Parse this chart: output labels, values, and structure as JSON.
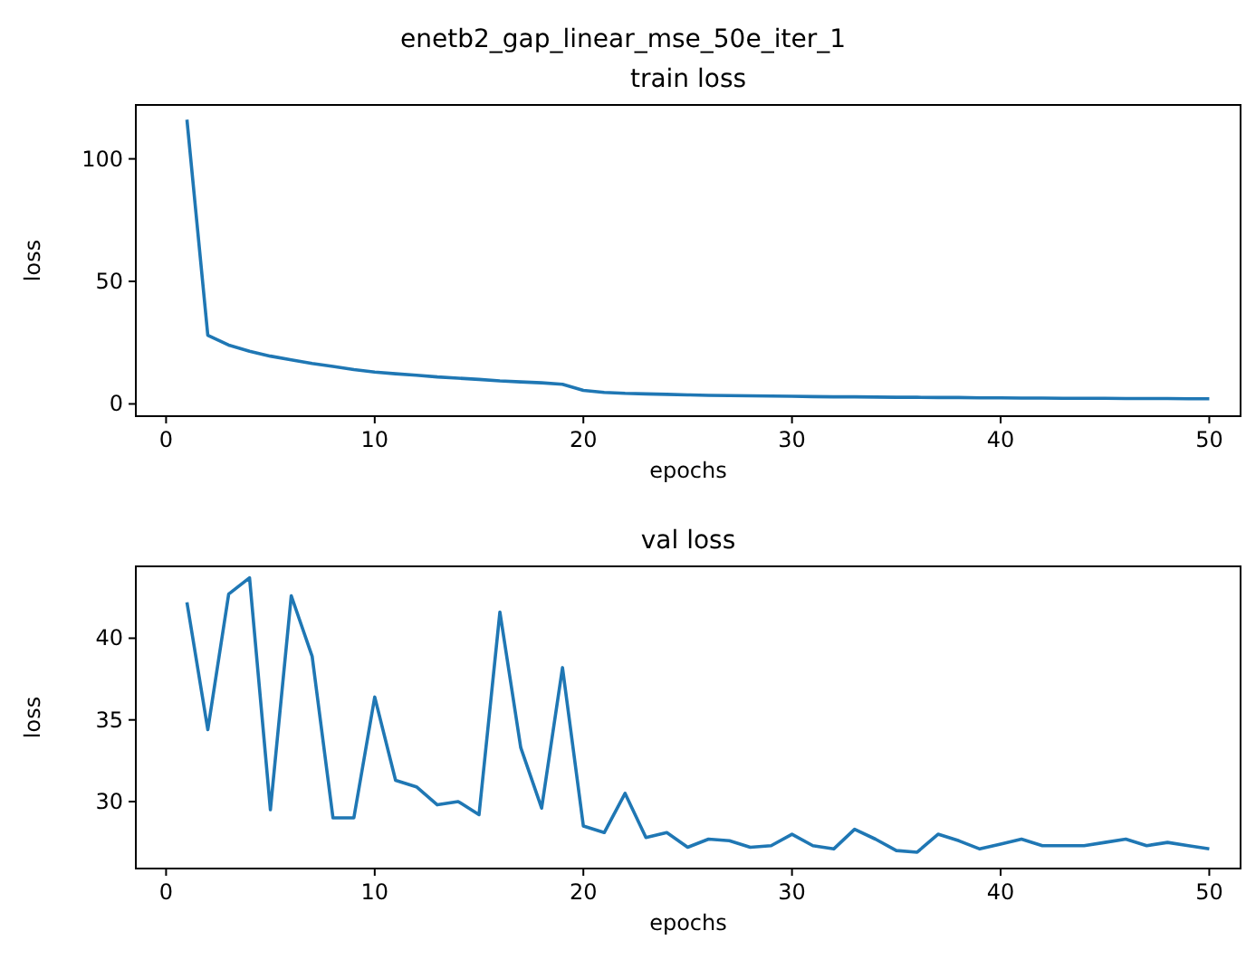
{
  "chart_data": [
    {
      "type": "line",
      "title": "enetb2_gap_linear_mse_50e_iter_1",
      "subtitle": "train loss",
      "xlabel": "epochs",
      "ylabel": "loss",
      "x": [
        1,
        2,
        3,
        4,
        5,
        6,
        7,
        8,
        9,
        10,
        11,
        12,
        13,
        14,
        15,
        16,
        17,
        18,
        19,
        20,
        21,
        22,
        23,
        24,
        25,
        26,
        27,
        28,
        29,
        30,
        31,
        32,
        33,
        34,
        35,
        36,
        37,
        38,
        39,
        40,
        41,
        42,
        43,
        44,
        45,
        46,
        47,
        48,
        49,
        50
      ],
      "series": [
        {
          "color": "#1f77b4",
          "values": [
            116,
            28,
            24,
            21.5,
            19.5,
            18,
            16.5,
            15.3,
            14,
            13,
            12.3,
            11.7,
            11,
            10.5,
            10,
            9.4,
            9,
            8.6,
            8,
            5.5,
            4.7,
            4.3,
            4.1,
            3.9,
            3.7,
            3.5,
            3.4,
            3.3,
            3.2,
            3.1,
            3.0,
            2.9,
            2.9,
            2.8,
            2.7,
            2.7,
            2.6,
            2.6,
            2.5,
            2.5,
            2.4,
            2.4,
            2.3,
            2.3,
            2.3,
            2.2,
            2.2,
            2.2,
            2.1,
            2.1
          ]
        }
      ],
      "xlim": [
        -1.45,
        51.5
      ],
      "xticks": [
        0,
        10,
        20,
        30,
        40,
        50
      ],
      "ylim": [
        -5,
        122
      ],
      "yticks": [
        0,
        50,
        100
      ]
    },
    {
      "type": "line",
      "title": "val loss",
      "xlabel": "epochs",
      "ylabel": "loss",
      "x": [
        1,
        2,
        3,
        4,
        5,
        6,
        7,
        8,
        9,
        10,
        11,
        12,
        13,
        14,
        15,
        16,
        17,
        18,
        19,
        20,
        21,
        22,
        23,
        24,
        25,
        26,
        27,
        28,
        29,
        30,
        31,
        32,
        33,
        34,
        35,
        36,
        37,
        38,
        39,
        40,
        41,
        42,
        43,
        44,
        45,
        46,
        47,
        48,
        49,
        50
      ],
      "series": [
        {
          "color": "#1f77b4",
          "values": [
            42.2,
            34.4,
            42.7,
            43.7,
            29.5,
            42.6,
            38.9,
            29.0,
            29.0,
            36.4,
            31.3,
            30.9,
            29.8,
            30.0,
            29.2,
            41.6,
            33.3,
            29.6,
            38.2,
            28.5,
            28.1,
            30.5,
            27.8,
            28.1,
            27.2,
            27.7,
            27.6,
            27.2,
            27.3,
            28.0,
            27.3,
            27.1,
            28.3,
            27.7,
            27.0,
            26.9,
            28.0,
            27.6,
            27.1,
            27.4,
            27.7,
            27.3,
            27.3,
            27.3,
            27.5,
            27.7,
            27.3,
            27.5,
            27.3,
            27.1
          ]
        }
      ],
      "xlim": [
        -1.45,
        51.5
      ],
      "xticks": [
        0,
        10,
        20,
        30,
        40,
        50
      ],
      "ylim": [
        25.9,
        44.4
      ],
      "yticks": [
        30,
        35,
        40
      ]
    }
  ]
}
